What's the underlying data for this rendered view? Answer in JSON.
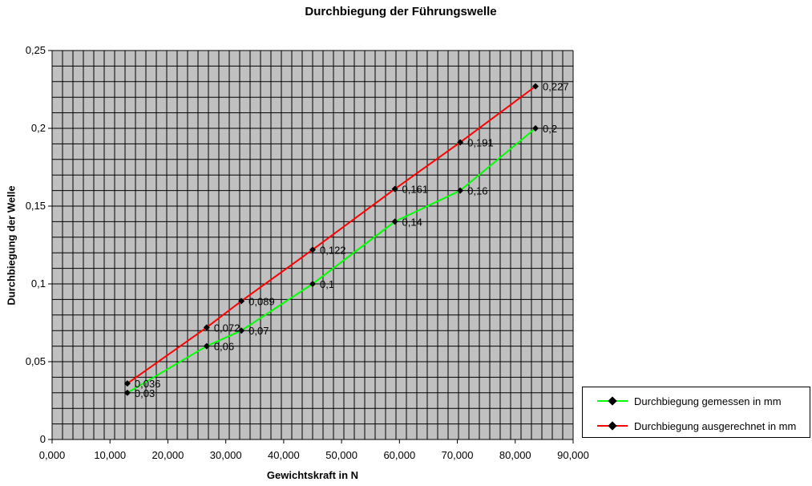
{
  "chart_data": {
    "type": "line",
    "title": "Durchbiegung der Führungswelle",
    "xlabel": "Gewichtskraft in N",
    "ylabel": "Durchbiegung der Welle",
    "xlim": [
      0,
      90000
    ],
    "ylim": [
      0,
      0.25
    ],
    "x_ticks": [
      "0,000",
      "10,000",
      "20,000",
      "30,000",
      "40,000",
      "50,000",
      "60,000",
      "70,000",
      "80,000",
      "90,000"
    ],
    "y_ticks": [
      "0",
      "0,05",
      "0,1",
      "0,15",
      "0,2",
      "0,25"
    ],
    "grid": true,
    "plot_background": "#c0c0c0",
    "legend_position": "bottom-right",
    "series": [
      {
        "name": "Durchbiegung gemessen in mm",
        "color": "#00ff00",
        "x": [
          13000,
          26700,
          32700,
          45000,
          59200,
          70500,
          83500
        ],
        "y": [
          0.03,
          0.06,
          0.07,
          0.1,
          0.14,
          0.16,
          0.2
        ],
        "labels": [
          "0,03",
          "0,06",
          "0,07",
          "0,1",
          "0,14",
          "0,16",
          "0,2"
        ]
      },
      {
        "name": "Durchbiegung ausgerechnet in mm",
        "color": "#ff0000",
        "x": [
          13000,
          26700,
          32700,
          45000,
          59200,
          70500,
          83500
        ],
        "y": [
          0.036,
          0.072,
          0.089,
          0.122,
          0.161,
          0.191,
          0.227
        ],
        "labels": [
          "0,036",
          "0,072",
          "0,089",
          "0,122",
          "0,161",
          "0,191",
          "0,227"
        ]
      }
    ]
  }
}
